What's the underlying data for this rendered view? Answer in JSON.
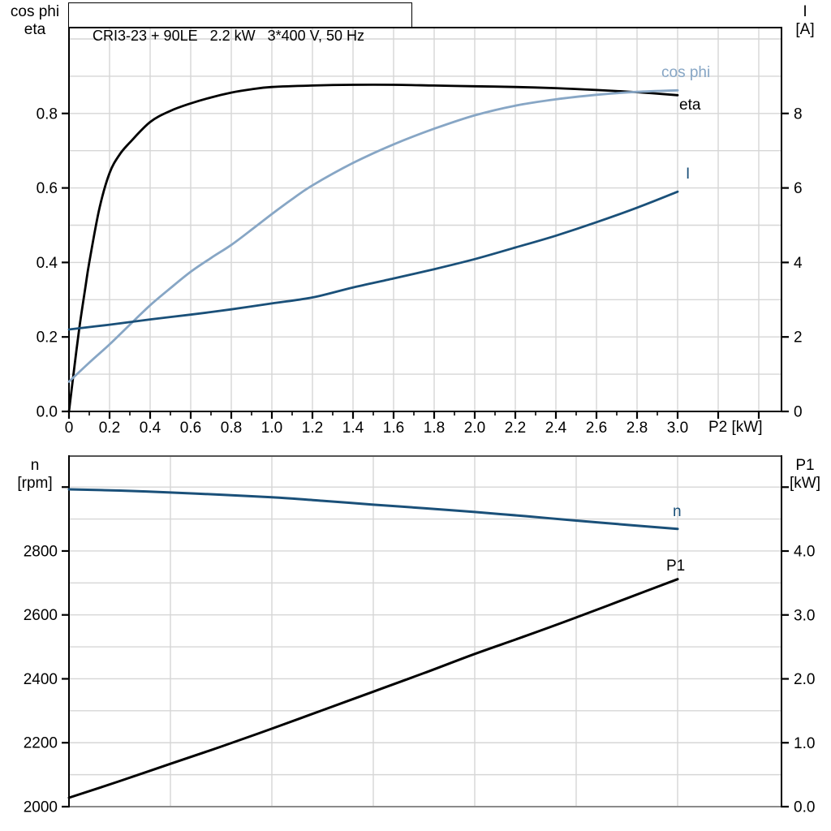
{
  "overlays": {
    "title": "CRI3-23 + 90LE   2.2 kW   3*400 V, 50 Hz",
    "top_left": [
      "cos phi",
      "eta"
    ],
    "top_right": [
      "I",
      "[A]"
    ],
    "bottom_left": [
      "n",
      "[rpm]"
    ],
    "bottom_right": [
      "P1",
      "[kW]"
    ],
    "x_label": "P2 [kW]",
    "curve_labels": {
      "cos_phi": "cos phi",
      "eta": "eta",
      "current": "I",
      "n": "n",
      "p1": "P1"
    }
  },
  "colors": {
    "black": "#000000",
    "dark_blue": "#1a5079",
    "light_blue": "#87a6c5",
    "grid": "#d6d6d6",
    "border_gray": "#8a8a8a",
    "border_dark": "#555555",
    "background": "#ffffff"
  },
  "chart_data": [
    {
      "type": "line",
      "title": "CRI3-23 + 90LE   2.2 kW   3*400 V, 50 Hz",
      "xlabel": "P2 [kW]",
      "x_axis": {
        "min": 0,
        "max": 3.512,
        "grid_step": 0.2,
        "grid_max": 3.41,
        "minor_tick_step": 0.1,
        "minor_tick_max": 3.0,
        "major_tick_step": 0.2,
        "major_tick_max": 3.41,
        "label_step": 0.2,
        "label_max": 3.0,
        "grid_on": true
      },
      "y_left": {
        "label": "cos phi / eta",
        "min": 0,
        "max": 1.0305,
        "grid_step": 0.1,
        "ticks": [
          0,
          0.2,
          0.4,
          0.6,
          0.8
        ],
        "tick_labels": [
          "0.0",
          "0.2",
          "0.4",
          "0.6",
          "0.8"
        ]
      },
      "y_right": {
        "label": "I [A]",
        "min": 0,
        "max": 10.305,
        "ticks": [
          0,
          2,
          4,
          6,
          8
        ],
        "tick_labels": [
          "0",
          "2",
          "4",
          "6",
          "8"
        ]
      },
      "series": [
        {
          "name": "eta",
          "axis": "left",
          "color": "#000000",
          "width": 2.8,
          "points": [
            [
              0,
              0
            ],
            [
              0.02,
              0.09
            ],
            [
              0.05,
              0.22
            ],
            [
              0.08,
              0.33
            ],
            [
              0.1,
              0.4
            ],
            [
              0.15,
              0.545
            ],
            [
              0.2,
              0.64
            ],
            [
              0.25,
              0.69
            ],
            [
              0.3,
              0.722
            ],
            [
              0.4,
              0.777
            ],
            [
              0.5,
              0.807
            ],
            [
              0.6,
              0.827
            ],
            [
              0.7,
              0.843
            ],
            [
              0.8,
              0.856
            ],
            [
              0.9,
              0.865
            ],
            [
              1,
              0.871
            ],
            [
              1.2,
              0.875
            ],
            [
              1.4,
              0.877
            ],
            [
              1.6,
              0.877
            ],
            [
              1.8,
              0.875
            ],
            [
              2,
              0.873
            ],
            [
              2.2,
              0.871
            ],
            [
              2.4,
              0.868
            ],
            [
              2.6,
              0.863
            ],
            [
              2.8,
              0.857
            ],
            [
              3,
              0.849
            ]
          ]
        },
        {
          "name": "cos phi",
          "axis": "left",
          "color": "#87a6c5",
          "width": 2.8,
          "points": [
            [
              0,
              0.08
            ],
            [
              0.1,
              0.131
            ],
            [
              0.2,
              0.18
            ],
            [
              0.3,
              0.233
            ],
            [
              0.4,
              0.285
            ],
            [
              0.5,
              0.331
            ],
            [
              0.6,
              0.375
            ],
            [
              0.7,
              0.412
            ],
            [
              0.8,
              0.447
            ],
            [
              0.9,
              0.488
            ],
            [
              1,
              0.53
            ],
            [
              1.1,
              0.57
            ],
            [
              1.2,
              0.607
            ],
            [
              1.4,
              0.667
            ],
            [
              1.6,
              0.717
            ],
            [
              1.8,
              0.759
            ],
            [
              2,
              0.795
            ],
            [
              2.2,
              0.821
            ],
            [
              2.4,
              0.838
            ],
            [
              2.6,
              0.85
            ],
            [
              2.8,
              0.858
            ],
            [
              3,
              0.862
            ]
          ]
        },
        {
          "name": "I",
          "axis": "right",
          "color": "#1a5079",
          "width": 2.8,
          "points": [
            [
              0,
              2.2
            ],
            [
              0.2,
              2.33
            ],
            [
              0.4,
              2.47
            ],
            [
              0.6,
              2.6
            ],
            [
              0.8,
              2.74
            ],
            [
              1,
              2.9
            ],
            [
              1.2,
              3.06
            ],
            [
              1.4,
              3.33
            ],
            [
              1.6,
              3.57
            ],
            [
              1.8,
              3.82
            ],
            [
              2,
              4.09
            ],
            [
              2.2,
              4.4
            ],
            [
              2.4,
              4.72
            ],
            [
              2.6,
              5.08
            ],
            [
              2.8,
              5.47
            ],
            [
              3,
              5.9
            ]
          ]
        }
      ]
    },
    {
      "type": "line",
      "title": "",
      "xlabel": "",
      "x_axis": {
        "min": 0,
        "max": 3.512,
        "grid_step": 0.5,
        "grid_max": 3.01,
        "grid_on": true
      },
      "y_left": {
        "label": "n [rpm]",
        "min": 2000,
        "max": 3097,
        "grid_step": 100,
        "ticks": [
          2000,
          2200,
          2400,
          2600,
          2800,
          3000
        ],
        "tick_labels": [
          "2000",
          "2200",
          "2400",
          "2600",
          "2800",
          ""
        ]
      },
      "y_right": {
        "label": "P1 [kW]",
        "min": 0,
        "max": 5.486,
        "ticks": [
          0,
          1,
          2,
          3,
          4,
          5
        ],
        "tick_labels": [
          "0.0",
          "1.0",
          "2.0",
          "3.0",
          "4.0",
          ""
        ]
      },
      "series": [
        {
          "name": "n",
          "axis": "left",
          "color": "#1a5079",
          "width": 3,
          "points": [
            [
              0,
              2993
            ],
            [
              0.25,
              2989
            ],
            [
              0.5,
              2983
            ],
            [
              0.75,
              2976
            ],
            [
              1,
              2968
            ],
            [
              1.25,
              2957
            ],
            [
              1.5,
              2945
            ],
            [
              1.75,
              2934
            ],
            [
              2,
              2922
            ],
            [
              2.25,
              2909
            ],
            [
              2.5,
              2895
            ],
            [
              2.75,
              2882
            ],
            [
              3,
              2869
            ]
          ]
        },
        {
          "name": "P1",
          "axis": "right",
          "color": "#000000",
          "width": 3,
          "points": [
            [
              0,
              0.14
            ],
            [
              0.25,
              0.4
            ],
            [
              0.5,
              0.67
            ],
            [
              0.75,
              0.94
            ],
            [
              1,
              1.22
            ],
            [
              1.25,
              1.51
            ],
            [
              1.5,
              1.8
            ],
            [
              1.75,
              2.09
            ],
            [
              2,
              2.39
            ],
            [
              2.25,
              2.67
            ],
            [
              2.5,
              2.96
            ],
            [
              2.75,
              3.26
            ],
            [
              3,
              3.56
            ]
          ]
        }
      ]
    }
  ]
}
